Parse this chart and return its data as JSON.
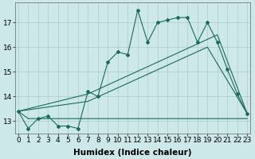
{
  "xlabel": "Humidex (Indice chaleur)",
  "background_color": "#cce8e8",
  "grid_color": "#b0c8c8",
  "line_color": "#1a6b5a",
  "x_values": [
    0,
    1,
    2,
    3,
    4,
    5,
    6,
    7,
    8,
    9,
    10,
    11,
    12,
    13,
    14,
    15,
    16,
    17,
    18,
    19,
    20,
    21,
    22,
    23
  ],
  "y_main": [
    13.4,
    12.7,
    13.1,
    13.2,
    12.8,
    12.8,
    12.7,
    14.2,
    14.0,
    15.4,
    15.8,
    15.7,
    17.5,
    16.2,
    17.0,
    17.1,
    17.2,
    17.2,
    16.2,
    17.0,
    16.2,
    15.1,
    14.1,
    13.3
  ],
  "y_flat": [
    13.4,
    13.1,
    13.1,
    13.1,
    13.1,
    13.1,
    13.1,
    13.1,
    13.1,
    13.1,
    13.1,
    13.1,
    13.1,
    13.1,
    13.1,
    13.1,
    13.1,
    13.1,
    13.1,
    13.1,
    13.1,
    13.1,
    13.1,
    13.1
  ],
  "y_trend1_x": [
    0,
    7,
    20,
    23
  ],
  "y_trend1_y": [
    13.4,
    14.1,
    16.5,
    13.3
  ],
  "y_trend2_x": [
    0,
    7,
    19,
    23
  ],
  "y_trend2_y": [
    13.4,
    13.8,
    16.0,
    13.3
  ],
  "xlim": [
    0,
    23
  ],
  "ylim": [
    12.5,
    17.8
  ],
  "yticks": [
    13,
    14,
    15,
    16,
    17
  ],
  "xticks": [
    0,
    1,
    2,
    3,
    4,
    5,
    6,
    7,
    8,
    9,
    10,
    11,
    12,
    13,
    14,
    15,
    16,
    17,
    18,
    19,
    20,
    21,
    22,
    23
  ],
  "xlabel_fontsize": 7.5,
  "tick_fontsize": 6.5,
  "figsize": [
    3.2,
    2.0
  ],
  "dpi": 100
}
